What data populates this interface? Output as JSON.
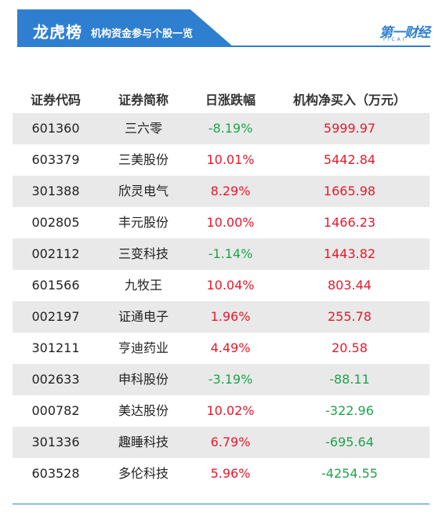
{
  "header": {
    "title": "龙虎榜",
    "subtitle": "机构资金参与个股一览",
    "logo": "第一财经",
    "logo_sub": "YICAI"
  },
  "table": {
    "columns": [
      "证券代码",
      "证券简称",
      "日涨跌幅",
      "机构净买入（万元）"
    ],
    "rows": [
      {
        "code": "601360",
        "name": "三六零",
        "change": "-8.19%",
        "change_dir": "down",
        "net_buy": "5999.97",
        "net_dir": "up"
      },
      {
        "code": "603379",
        "name": "三美股份",
        "change": "10.01%",
        "change_dir": "up",
        "net_buy": "5442.84",
        "net_dir": "up"
      },
      {
        "code": "301388",
        "name": "欣灵电气",
        "change": "8.29%",
        "change_dir": "up",
        "net_buy": "1665.98",
        "net_dir": "up"
      },
      {
        "code": "002805",
        "name": "丰元股份",
        "change": "10.00%",
        "change_dir": "up",
        "net_buy": "1466.23",
        "net_dir": "up"
      },
      {
        "code": "002112",
        "name": "三变科技",
        "change": "-1.14%",
        "change_dir": "down",
        "net_buy": "1443.82",
        "net_dir": "up"
      },
      {
        "code": "601566",
        "name": "九牧王",
        "change": "10.04%",
        "change_dir": "up",
        "net_buy": "803.44",
        "net_dir": "up"
      },
      {
        "code": "002197",
        "name": "证通电子",
        "change": "1.96%",
        "change_dir": "up",
        "net_buy": "255.78",
        "net_dir": "up"
      },
      {
        "code": "301211",
        "name": "亨迪药业",
        "change": "4.49%",
        "change_dir": "up",
        "net_buy": "20.58",
        "net_dir": "up"
      },
      {
        "code": "002633",
        "name": "申科股份",
        "change": "-3.19%",
        "change_dir": "down",
        "net_buy": "-88.11",
        "net_dir": "down"
      },
      {
        "code": "000782",
        "name": "美达股份",
        "change": "10.02%",
        "change_dir": "up",
        "net_buy": "-322.96",
        "net_dir": "down"
      },
      {
        "code": "301336",
        "name": "趣睡科技",
        "change": "6.79%",
        "change_dir": "up",
        "net_buy": "-695.64",
        "net_dir": "down"
      },
      {
        "code": "603528",
        "name": "多伦科技",
        "change": "5.96%",
        "change_dir": "up",
        "net_buy": "-4254.55",
        "net_dir": "down"
      }
    ]
  },
  "colors": {
    "brand_blue": "#2f7fd1",
    "up": "#e8182b",
    "down": "#1ea44c",
    "stripe": "#e9e9e9"
  }
}
